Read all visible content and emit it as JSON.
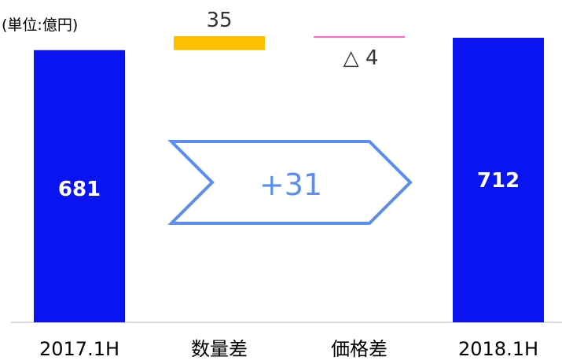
{
  "unit_label": "(単位:億円)",
  "chart_data": {
    "type": "bar",
    "subtype": "waterfall",
    "categories": [
      "2017.1H",
      "数量差",
      "価格差",
      "2018.1H"
    ],
    "values": [
      681,
      35,
      -4,
      712
    ],
    "data_labels": [
      "681",
      "35",
      "△ 4",
      "712"
    ],
    "bar_roles": [
      "total",
      "delta",
      "delta",
      "total"
    ],
    "colors": {
      "total": "#0a14f0",
      "increase": "#ffc000",
      "decrease": "#ff66cc",
      "arrow": "#5b8ef0"
    },
    "change_label": "+31",
    "ylim": [
      0,
      712
    ],
    "title": "",
    "xlabel": "",
    "ylabel": ""
  }
}
